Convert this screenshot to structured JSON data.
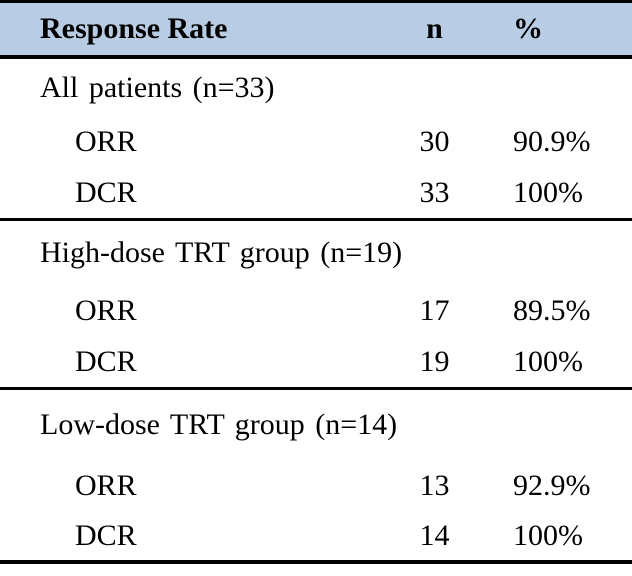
{
  "table": {
    "header": {
      "response_rate": "Response Rate",
      "n": "n",
      "percent": "%"
    },
    "sections": [
      {
        "label": "All patients (n=33)",
        "rows": [
          {
            "label": "ORR",
            "n": "30",
            "pct": "90.9%"
          },
          {
            "label": "DCR",
            "n": "33",
            "pct": "100%"
          }
        ]
      },
      {
        "label": "High-dose TRT group (n=19)",
        "rows": [
          {
            "label": "ORR",
            "n": "17",
            "pct": "89.5%"
          },
          {
            "label": "DCR",
            "n": "19",
            "pct": "100%"
          }
        ]
      },
      {
        "label": "Low-dose TRT group (n=14)",
        "rows": [
          {
            "label": "ORR",
            "n": "13",
            "pct": "92.9%"
          },
          {
            "label": "DCR",
            "n": "14",
            "pct": "100%"
          }
        ]
      }
    ]
  },
  "colors": {
    "header_bg": "#b8cce4",
    "rule": "#000000",
    "text": "#000000",
    "page_bg": "#ffffff"
  },
  "chart_data": {
    "type": "table",
    "title": "Response Rate",
    "columns": [
      "Response Rate",
      "n",
      "%"
    ],
    "rows": [
      [
        "All patients (n=33)",
        null,
        null
      ],
      [
        "ORR",
        30,
        "90.9%"
      ],
      [
        "DCR",
        33,
        "100%"
      ],
      [
        "High-dose TRT group (n=19)",
        null,
        null
      ],
      [
        "ORR",
        17,
        "89.5%"
      ],
      [
        "DCR",
        19,
        "100%"
      ],
      [
        "Low-dose TRT group (n=14)",
        null,
        null
      ],
      [
        "ORR",
        13,
        "92.9%"
      ],
      [
        "DCR",
        14,
        "100%"
      ]
    ]
  }
}
